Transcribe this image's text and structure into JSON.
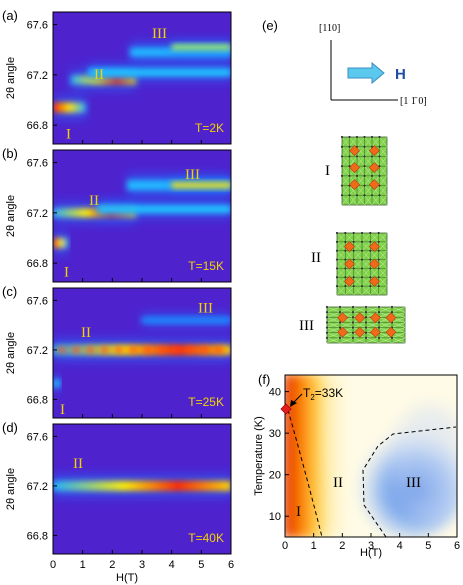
{
  "colors": {
    "bg_purple": "#5a1fc8",
    "phase_label": "#f2d200",
    "temp_label": "#f2d200",
    "arrow_fill": "#5bc8ee",
    "arrow_stroke": "#3a8fc0",
    "h_label": "#1f4ea8",
    "marker": "#e02020"
  },
  "left": {
    "ylabel": "2θ angle",
    "xlabel": "H(T)",
    "yticks": [
      "67.6",
      "67.2",
      "66.8"
    ],
    "xticks": [
      "0",
      "1",
      "2",
      "3",
      "4",
      "5",
      "6"
    ],
    "panels": [
      {
        "tag": "(a)",
        "temp": "T=2K",
        "phases": [
          "I",
          "II",
          "III"
        ]
      },
      {
        "tag": "(b)",
        "temp": "T=15K",
        "phases": [
          "I",
          "II",
          "III"
        ]
      },
      {
        "tag": "(c)",
        "temp": "T=25K",
        "phases": [
          "I",
          "II",
          "III"
        ]
      },
      {
        "tag": "(d)",
        "temp": "T=40K",
        "phases": [
          "II"
        ]
      }
    ]
  },
  "e": {
    "tag": "(e)",
    "axis_up": "[110]",
    "axis_right": "[1 1̄ 0]",
    "field": "H",
    "structures": [
      "I",
      "II",
      "III"
    ]
  },
  "f": {
    "tag": "(f)",
    "ylabel": "Temperature (K)",
    "xlabel": "H(T)",
    "yticks": [
      "40",
      "30",
      "20",
      "10"
    ],
    "xticks": [
      "0",
      "1",
      "2",
      "3",
      "4",
      "5",
      "6"
    ],
    "point_label": "T",
    "point_sub": "2",
    "point_value": "=33K",
    "phases": [
      "I",
      "II",
      "III"
    ]
  }
}
